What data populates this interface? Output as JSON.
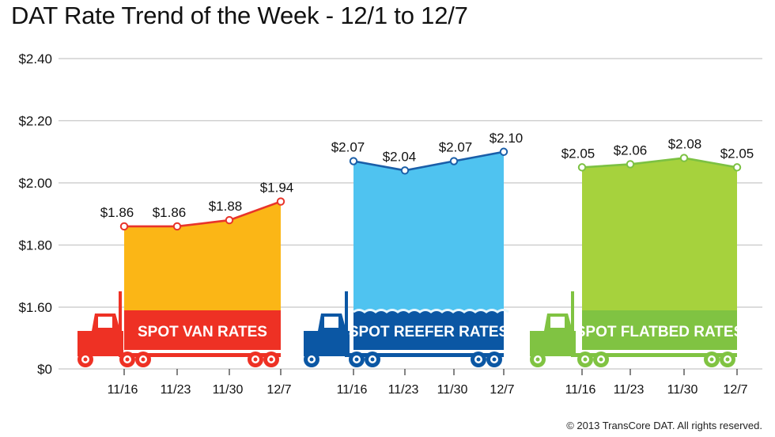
{
  "title": "DAT Rate Trend of the Week - 12/1 to 12/7",
  "copyright": "© 2013 TransCore DAT. All rights reserved.",
  "chart_data": {
    "type": "area",
    "ylim": [
      0,
      2.4
    ],
    "axis_break": [
      0,
      1.6
    ],
    "yticks": [
      {
        "value": 0,
        "label": "$0"
      },
      {
        "value": 1.6,
        "label": "$1.60"
      },
      {
        "value": 1.8,
        "label": "$1.80"
      },
      {
        "value": 2.0,
        "label": "$2.00"
      },
      {
        "value": 2.2,
        "label": "$2.20"
      },
      {
        "value": 2.4,
        "label": "$2.40"
      }
    ],
    "grid": true,
    "categories": [
      "11/16",
      "11/23",
      "11/30",
      "12/7"
    ],
    "series": [
      {
        "name": "SPOT VAN RATES",
        "values": [
          1.86,
          1.86,
          1.88,
          1.94
        ],
        "labels": [
          "$1.86",
          "$1.86",
          "$1.88",
          "$1.94"
        ],
        "line_color": "#e8342a",
        "fill_color": "#fbb616",
        "banner_color": "#ee3124"
      },
      {
        "name": "SPOT REEFER RATES",
        "values": [
          2.07,
          2.04,
          2.07,
          2.1
        ],
        "labels": [
          "$2.07",
          "$2.04",
          "$2.07",
          "$2.10"
        ],
        "line_color": "#1a5ea8",
        "fill_color": "#4fc3f0",
        "banner_color": "#0b57a4"
      },
      {
        "name": "SPOT FLATBED RATES",
        "values": [
          2.05,
          2.06,
          2.08,
          2.05
        ],
        "labels": [
          "$2.05",
          "$2.06",
          "$2.08",
          "$2.05"
        ],
        "line_color": "#7cc142",
        "fill_color": "#a6d23d",
        "banner_color": "#80c342"
      }
    ]
  }
}
